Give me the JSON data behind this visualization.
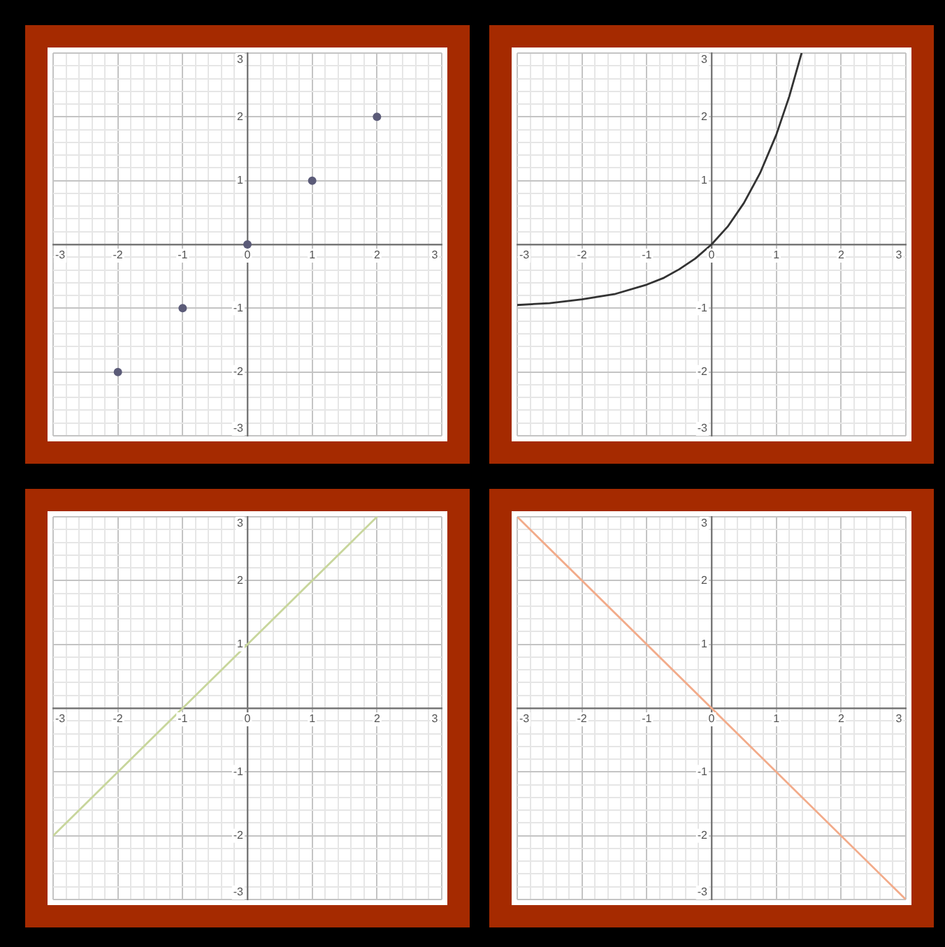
{
  "chart_data": [
    {
      "type": "scatter",
      "marker": "circle",
      "color": "#5b5b78",
      "x": [
        -2,
        -1,
        0,
        1,
        2
      ],
      "values": [
        -2,
        -1,
        0,
        1,
        2
      ],
      "xlim": [
        -3,
        3
      ],
      "ylim": [
        -3,
        3
      ],
      "grid": true,
      "xticks": [
        -3,
        {
          "value": -2.8,
          "label": null
        },
        {
          "value": -2.6,
          "label": null
        },
        {
          "value": -2.4,
          "label": null
        },
        {
          "value": -2.2,
          "label": null
        },
        -2,
        {
          "value": -1.8,
          "label": null
        },
        {
          "value": -1.6,
          "label": null
        },
        {
          "value": -1.4,
          "label": null
        },
        {
          "value": -1.2,
          "label": null
        },
        -1,
        {
          "value": -0.8,
          "label": null
        },
        {
          "value": -0.6,
          "label": null
        },
        {
          "value": -0.4,
          "label": null
        },
        {
          "value": -0.2,
          "label": null
        },
        0,
        {
          "value": 0.2,
          "label": null
        },
        {
          "value": 0.4,
          "label": null
        },
        {
          "value": 0.6,
          "label": null
        },
        {
          "value": 0.8,
          "label": null
        },
        1,
        {
          "value": 1.2,
          "label": null
        },
        {
          "value": 1.4,
          "label": null
        },
        {
          "value": 1.6,
          "label": null
        },
        {
          "value": 1.8,
          "label": null
        },
        2,
        {
          "value": 2.2,
          "label": null
        },
        {
          "value": 2.4,
          "label": null
        },
        {
          "value": 2.6,
          "label": null
        },
        {
          "value": 2.8,
          "label": null
        },
        3
      ],
      "yticks": [
        -3,
        {
          "value": -2.8,
          "label": null
        },
        {
          "value": -2.6,
          "label": null
        },
        {
          "value": -2.4,
          "label": null
        },
        {
          "value": -2.2,
          "label": null
        },
        -2,
        {
          "value": -1.8,
          "label": null
        },
        {
          "value": -1.6,
          "label": null
        },
        {
          "value": -1.4,
          "label": null
        },
        {
          "value": -1.2,
          "label": null
        },
        -1,
        {
          "value": -0.8,
          "label": null
        },
        {
          "value": -0.6,
          "label": null
        },
        {
          "value": -0.4,
          "label": null
        },
        {
          "value": -0.2,
          "label": null
        },
        {
          "value": 0,
          "label": null
        },
        {
          "value": 0.2,
          "label": null
        },
        {
          "value": 0.4,
          "label": null
        },
        {
          "value": 0.6,
          "label": null
        },
        {
          "value": 0.8,
          "label": null
        },
        1,
        {
          "value": 1.2,
          "label": null
        },
        {
          "value": 1.4,
          "label": null
        },
        {
          "value": 1.6,
          "label": null
        },
        {
          "value": 1.8,
          "label": null
        },
        2,
        {
          "value": 2.2,
          "label": null
        },
        {
          "value": 2.4,
          "label": null
        },
        {
          "value": 2.6,
          "label": null
        },
        {
          "value": 2.8,
          "label": null
        },
        3
      ]
    },
    {
      "type": "line",
      "marker": "none",
      "line_style": "solid",
      "color": "#333333",
      "x": [
        -3,
        -2.5,
        -2,
        -1.5,
        -1,
        -0.75,
        -0.5,
        -0.25,
        0,
        0.25,
        0.5,
        0.75,
        1,
        1.2,
        1.39
      ],
      "values": [
        -0.95,
        -0.92,
        -0.86,
        -0.78,
        -0.63,
        -0.53,
        -0.39,
        -0.22,
        0,
        0.28,
        0.65,
        1.12,
        1.72,
        2.32,
        3
      ],
      "xlim": [
        -3,
        3
      ],
      "ylim": [
        -3,
        3
      ],
      "grid": true,
      "xticks": [
        -3,
        {
          "value": -2.8,
          "label": null
        },
        {
          "value": -2.6,
          "label": null
        },
        {
          "value": -2.4,
          "label": null
        },
        {
          "value": -2.2,
          "label": null
        },
        -2,
        {
          "value": -1.8,
          "label": null
        },
        {
          "value": -1.6,
          "label": null
        },
        {
          "value": -1.4,
          "label": null
        },
        {
          "value": -1.2,
          "label": null
        },
        -1,
        {
          "value": -0.8,
          "label": null
        },
        {
          "value": -0.6,
          "label": null
        },
        {
          "value": -0.4,
          "label": null
        },
        {
          "value": -0.2,
          "label": null
        },
        0,
        {
          "value": 0.2,
          "label": null
        },
        {
          "value": 0.4,
          "label": null
        },
        {
          "value": 0.6,
          "label": null
        },
        {
          "value": 0.8,
          "label": null
        },
        1,
        {
          "value": 1.2,
          "label": null
        },
        {
          "value": 1.4,
          "label": null
        },
        {
          "value": 1.6,
          "label": null
        },
        {
          "value": 1.8,
          "label": null
        },
        2,
        {
          "value": 2.2,
          "label": null
        },
        {
          "value": 2.4,
          "label": null
        },
        {
          "value": 2.6,
          "label": null
        },
        {
          "value": 2.8,
          "label": null
        },
        3
      ],
      "yticks": [
        -3,
        {
          "value": -2.8,
          "label": null
        },
        {
          "value": -2.6,
          "label": null
        },
        {
          "value": -2.4,
          "label": null
        },
        {
          "value": -2.2,
          "label": null
        },
        -2,
        {
          "value": -1.8,
          "label": null
        },
        {
          "value": -1.6,
          "label": null
        },
        {
          "value": -1.4,
          "label": null
        },
        {
          "value": -1.2,
          "label": null
        },
        -1,
        {
          "value": -0.8,
          "label": null
        },
        {
          "value": -0.6,
          "label": null
        },
        {
          "value": -0.4,
          "label": null
        },
        {
          "value": -0.2,
          "label": null
        },
        {
          "value": 0,
          "label": null
        },
        {
          "value": 0.2,
          "label": null
        },
        {
          "value": 0.4,
          "label": null
        },
        {
          "value": 0.6,
          "label": null
        },
        {
          "value": 0.8,
          "label": null
        },
        1,
        {
          "value": 1.2,
          "label": null
        },
        {
          "value": 1.4,
          "label": null
        },
        {
          "value": 1.6,
          "label": null
        },
        {
          "value": 1.8,
          "label": null
        },
        2,
        {
          "value": 2.2,
          "label": null
        },
        {
          "value": 2.4,
          "label": null
        },
        {
          "value": 2.6,
          "label": null
        },
        {
          "value": 2.8,
          "label": null
        },
        3
      ]
    },
    {
      "type": "line",
      "marker": "none",
      "line_style": "solid",
      "color": "#c8d69c",
      "x": [
        -3,
        2
      ],
      "values": [
        -2,
        3
      ],
      "xlim": [
        -3,
        3
      ],
      "ylim": [
        -3,
        3
      ],
      "grid": true,
      "xticks": [
        -3,
        {
          "value": -2.8,
          "label": null
        },
        {
          "value": -2.6,
          "label": null
        },
        {
          "value": -2.4,
          "label": null
        },
        {
          "value": -2.2,
          "label": null
        },
        -2,
        {
          "value": -1.8,
          "label": null
        },
        {
          "value": -1.6,
          "label": null
        },
        {
          "value": -1.4,
          "label": null
        },
        {
          "value": -1.2,
          "label": null
        },
        -1,
        {
          "value": -0.8,
          "label": null
        },
        {
          "value": -0.6,
          "label": null
        },
        {
          "value": -0.4,
          "label": null
        },
        {
          "value": -0.2,
          "label": null
        },
        0,
        {
          "value": 0.2,
          "label": null
        },
        {
          "value": 0.4,
          "label": null
        },
        {
          "value": 0.6,
          "label": null
        },
        {
          "value": 0.8,
          "label": null
        },
        1,
        {
          "value": 1.2,
          "label": null
        },
        {
          "value": 1.4,
          "label": null
        },
        {
          "value": 1.6,
          "label": null
        },
        {
          "value": 1.8,
          "label": null
        },
        2,
        {
          "value": 2.2,
          "label": null
        },
        {
          "value": 2.4,
          "label": null
        },
        {
          "value": 2.6,
          "label": null
        },
        {
          "value": 2.8,
          "label": null
        },
        3
      ],
      "yticks": [
        -3,
        {
          "value": -2.8,
          "label": null
        },
        {
          "value": -2.6,
          "label": null
        },
        {
          "value": -2.4,
          "label": null
        },
        {
          "value": -2.2,
          "label": null
        },
        -2,
        {
          "value": -1.8,
          "label": null
        },
        {
          "value": -1.6,
          "label": null
        },
        {
          "value": -1.4,
          "label": null
        },
        {
          "value": -1.2,
          "label": null
        },
        -1,
        {
          "value": -0.8,
          "label": null
        },
        {
          "value": -0.6,
          "label": null
        },
        {
          "value": -0.4,
          "label": null
        },
        {
          "value": -0.2,
          "label": null
        },
        {
          "value": 0,
          "label": null
        },
        {
          "value": 0.2,
          "label": null
        },
        {
          "value": 0.4,
          "label": null
        },
        {
          "value": 0.6,
          "label": null
        },
        {
          "value": 0.8,
          "label": null
        },
        1,
        {
          "value": 1.2,
          "label": null
        },
        {
          "value": 1.4,
          "label": null
        },
        {
          "value": 1.6,
          "label": null
        },
        {
          "value": 1.8,
          "label": null
        },
        2,
        {
          "value": 2.2,
          "label": null
        },
        {
          "value": 2.4,
          "label": null
        },
        {
          "value": 2.6,
          "label": null
        },
        {
          "value": 2.8,
          "label": null
        },
        3
      ]
    },
    {
      "type": "line",
      "marker": "none",
      "line_style": "solid",
      "color": "#f2ab8a",
      "x": [
        -3,
        3
      ],
      "values": [
        3,
        -3
      ],
      "xlim": [
        -3,
        3
      ],
      "ylim": [
        -3,
        3
      ],
      "grid": true,
      "xticks": [
        -3,
        {
          "value": -2.8,
          "label": null
        },
        {
          "value": -2.6,
          "label": null
        },
        {
          "value": -2.4,
          "label": null
        },
        {
          "value": -2.2,
          "label": null
        },
        -2,
        {
          "value": -1.8,
          "label": null
        },
        {
          "value": -1.6,
          "label": null
        },
        {
          "value": -1.4,
          "label": null
        },
        {
          "value": -1.2,
          "label": null
        },
        -1,
        {
          "value": -0.8,
          "label": null
        },
        {
          "value": -0.6,
          "label": null
        },
        {
          "value": -0.4,
          "label": null
        },
        {
          "value": -0.2,
          "label": null
        },
        0,
        {
          "value": 0.2,
          "label": null
        },
        {
          "value": 0.4,
          "label": null
        },
        {
          "value": 0.6,
          "label": null
        },
        {
          "value": 0.8,
          "label": null
        },
        1,
        {
          "value": 1.2,
          "label": null
        },
        {
          "value": 1.4,
          "label": null
        },
        {
          "value": 1.6,
          "label": null
        },
        {
          "value": 1.8,
          "label": null
        },
        2,
        {
          "value": 2.2,
          "label": null
        },
        {
          "value": 2.4,
          "label": null
        },
        {
          "value": 2.6,
          "label": null
        },
        {
          "value": 2.8,
          "label": null
        },
        3
      ],
      "yticks": [
        -3,
        {
          "value": -2.8,
          "label": null
        },
        {
          "value": -2.6,
          "label": null
        },
        {
          "value": -2.4,
          "label": null
        },
        {
          "value": -2.2,
          "label": null
        },
        -2,
        {
          "value": -1.8,
          "label": null
        },
        {
          "value": -1.6,
          "label": null
        },
        {
          "value": -1.4,
          "label": null
        },
        {
          "value": -1.2,
          "label": null
        },
        -1,
        {
          "value": -0.8,
          "label": null
        },
        {
          "value": -0.6,
          "label": null
        },
        {
          "value": -0.4,
          "label": null
        },
        {
          "value": -0.2,
          "label": null
        },
        {
          "value": 0,
          "label": null
        },
        {
          "value": 0.2,
          "label": null
        },
        {
          "value": 0.4,
          "label": null
        },
        {
          "value": 0.6,
          "label": null
        },
        {
          "value": 0.8,
          "label": null
        },
        1,
        {
          "value": 1.2,
          "label": null
        },
        {
          "value": 1.4,
          "label": null
        },
        {
          "value": 1.6,
          "label": null
        },
        {
          "value": 1.8,
          "label": null
        },
        2,
        {
          "value": 2.2,
          "label": null
        },
        {
          "value": 2.4,
          "label": null
        },
        {
          "value": 2.6,
          "label": null
        },
        {
          "value": 2.8,
          "label": null
        },
        3
      ]
    }
  ]
}
